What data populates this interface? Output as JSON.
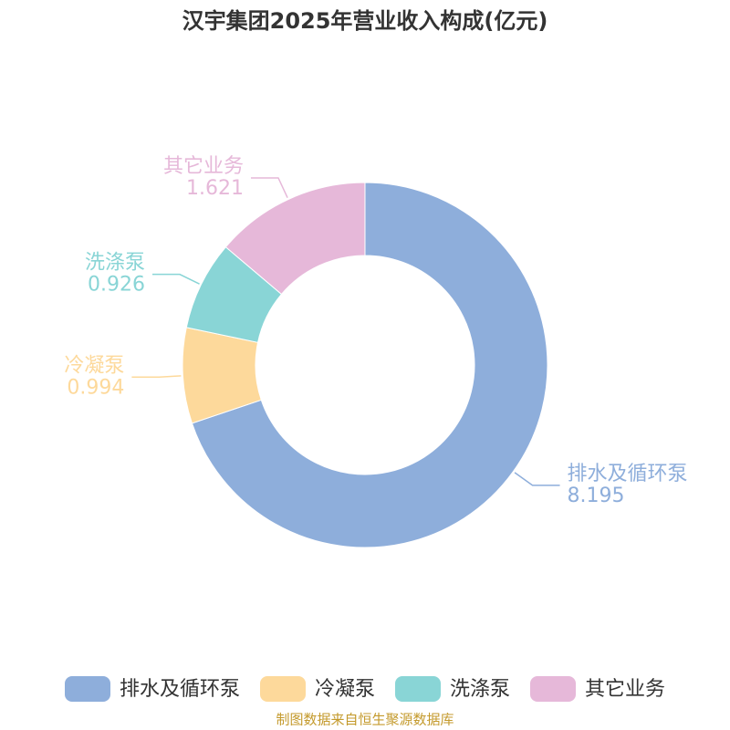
{
  "chart_data": {
    "type": "pie",
    "title": "汉宇集团2025年营业收入构成(亿元)",
    "categories": [
      "排水及循环泵",
      "冷凝泵",
      "洗涤泵",
      "其它业务"
    ],
    "values": [
      8.195,
      0.994,
      0.926,
      1.621
    ],
    "colors": [
      "#8eaedb",
      "#fdd99b",
      "#89d5d6",
      "#e6b8d9"
    ],
    "source": "制图数据来自恒生聚源数据库"
  }
}
